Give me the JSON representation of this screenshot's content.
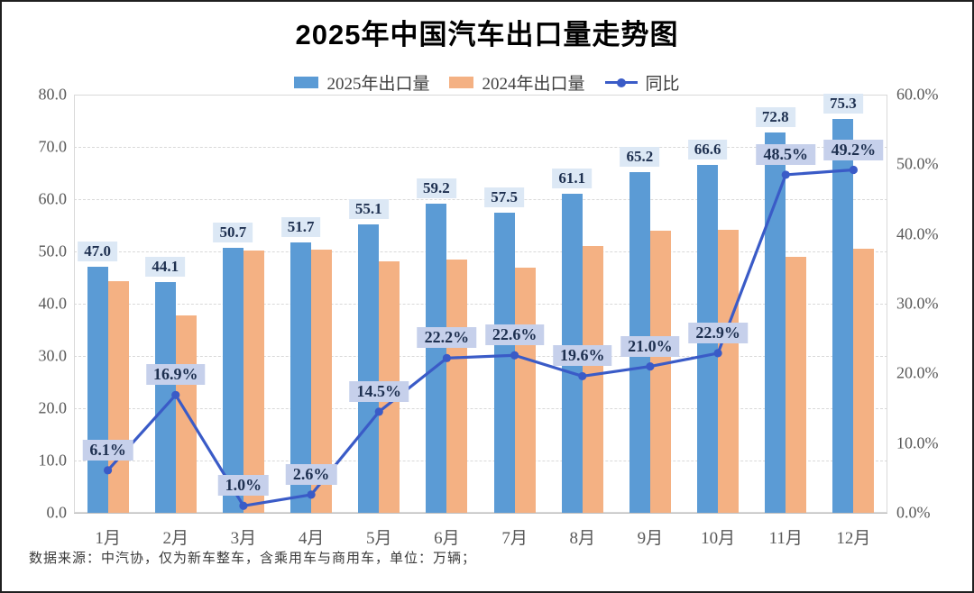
{
  "title": "2025年中国汽车出口量走势图",
  "footnote": "数据来源：中汽协，仅为新车整车，含乘用车与商用车，单位：万辆；",
  "colors": {
    "bar_2025": "#5B9BD5",
    "bar_2024": "#F4B183",
    "line": "#3A5BC7",
    "bar_label_bg": "#dce8f5",
    "pct_label_bg": "#c6d0eb",
    "label_text": "#1e3050",
    "tick_text": "#595959",
    "gridline": "#d9d9d9"
  },
  "legend": [
    {
      "label": "2025年出口量",
      "type": "bar",
      "color": "#5B9BD5",
      "icon": "blue-bar-swatch-icon"
    },
    {
      "label": "2024年出口量",
      "type": "bar",
      "color": "#F4B183",
      "icon": "orange-bar-swatch-icon"
    },
    {
      "label": "同比",
      "type": "line",
      "color": "#3A5BC7",
      "icon": "line-marker-swatch-icon"
    }
  ],
  "chart_data": {
    "type": "bar",
    "subtype": "grouped bars with overlay line (dual axis)",
    "title": "2025年中国汽车出口量走势图",
    "categories": [
      "1月",
      "2月",
      "3月",
      "4月",
      "5月",
      "6月",
      "7月",
      "8月",
      "9月",
      "10月",
      "11月",
      "12月"
    ],
    "series": [
      {
        "name": "2025年出口量",
        "type": "bar",
        "axis": "left",
        "color": "#5B9BD5",
        "values": [
          47.0,
          44.1,
          50.7,
          51.7,
          55.1,
          59.2,
          57.5,
          61.1,
          65.2,
          66.6,
          72.8,
          75.3
        ],
        "labels": [
          "47.0",
          "44.1",
          "50.7",
          "51.7",
          "55.1",
          "59.2",
          "57.5",
          "61.1",
          "65.2",
          "66.6",
          "72.8",
          "75.3"
        ]
      },
      {
        "name": "2024年出口量",
        "type": "bar",
        "axis": "left",
        "color": "#F4B183",
        "values": [
          44.3,
          37.7,
          50.2,
          50.4,
          48.1,
          48.4,
          46.9,
          51.1,
          53.9,
          54.2,
          49.0,
          50.5
        ],
        "labels": []
      },
      {
        "name": "同比",
        "type": "line",
        "axis": "right",
        "color": "#3A5BC7",
        "values": [
          6.1,
          16.9,
          1.0,
          2.6,
          14.5,
          22.2,
          22.6,
          19.6,
          21.0,
          22.9,
          48.5,
          49.2
        ],
        "labels": [
          "6.1%",
          "16.9%",
          "1.0%",
          "2.6%",
          "14.5%",
          "22.2%",
          "22.6%",
          "19.6%",
          "21.0%",
          "22.9%",
          "48.5%",
          "49.2%"
        ]
      }
    ],
    "left_axis": {
      "min": 0,
      "max": 80,
      "step": 10,
      "tick_labels": [
        "0.0",
        "10.0",
        "20.0",
        "30.0",
        "40.0",
        "50.0",
        "60.0",
        "70.0",
        "80.0"
      ]
    },
    "right_axis": {
      "min": 0,
      "max": 60,
      "step": 10,
      "tick_labels": [
        "0.0%",
        "10.0%",
        "20.0%",
        "30.0%",
        "40.0%",
        "50.0%",
        "60.0%"
      ]
    },
    "grid": "horizontal dashed, primary axis",
    "legend_position": "top center",
    "xlabel": "",
    "ylabel": ""
  }
}
